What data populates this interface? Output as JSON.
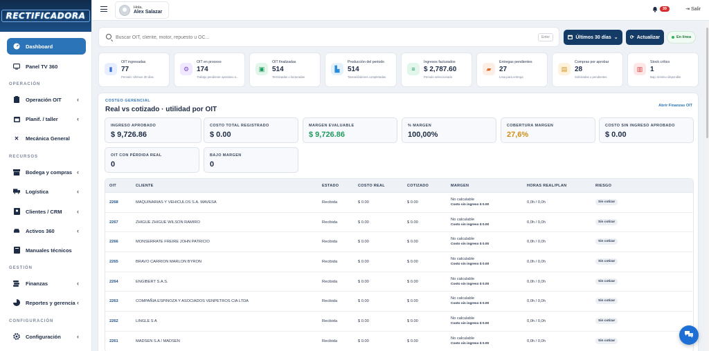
{
  "brand": {
    "logo_text": "RECTIFICADORA"
  },
  "sidebar": {
    "items": [
      {
        "label": "Dashboard",
        "icon": "dashboard-gauge-icon",
        "active": true
      },
      {
        "label": "Panel TV 360",
        "icon": "tv-icon"
      },
      {
        "label": "Operación OIT",
        "icon": "clipboard-icon",
        "chevron": true
      },
      {
        "label": "Planif. / taller",
        "icon": "calendar-icon",
        "chevron": true
      },
      {
        "label": "Mecánica General",
        "icon": "wrench-icon"
      },
      {
        "label": "Bodega y compras",
        "icon": "box-icon",
        "chevron": true
      },
      {
        "label": "Logística",
        "icon": "truck-icon",
        "chevron": true
      },
      {
        "label": "Clientes / CRM",
        "icon": "address-book-icon",
        "chevron": true
      },
      {
        "label": "Activos 360",
        "icon": "car-icon",
        "chevron": true
      },
      {
        "label": "Manuales técnicos",
        "icon": "book-icon"
      },
      {
        "label": "Finanzas",
        "icon": "coins-icon",
        "chevron": true
      },
      {
        "label": "Reportes y gerencia",
        "icon": "pie-chart-icon",
        "chevron": true
      },
      {
        "label": "Configuración",
        "icon": "gear-icon",
        "chevron": true
      }
    ],
    "sections": [
      "OPERACIÓN",
      "RECURSOS",
      "GESTIÓN",
      "CONFIGURACIÓN"
    ]
  },
  "topbar": {
    "greeting": "Hola,",
    "user_name": "Alex Salazar",
    "notif_count": "39",
    "logout_label": "Salir"
  },
  "search": {
    "placeholder": "Buscar OIT, cliente, motor, repuesto u OC...",
    "enter_hint": "Enter",
    "range_label": "Últimos 30 días",
    "refresh_label": "Actualizar",
    "status_label": "En línea"
  },
  "kpis": [
    {
      "label": "OIT ingresadas",
      "value": "77",
      "sub": "Periodo: Últimos 30 días",
      "icon": "clipboard-icon",
      "color": "#3a6fd8",
      "bg": "#e6eeff"
    },
    {
      "label": "OIT en proceso",
      "value": "174",
      "sub": "Trabajo pendiente operativo a...",
      "icon": "gears-icon",
      "color": "#7a4fd0",
      "bg": "#efe8ff"
    },
    {
      "label": "OIT finalizadas",
      "value": "514",
      "sub": "Terminadas o facturadas",
      "icon": "check-box-icon",
      "color": "#1d9a5c",
      "bg": "#e3f6ec"
    },
    {
      "label": "Producción del periodo",
      "value": "514",
      "sub": "Tareas/órdenes completadas",
      "icon": "industry-icon",
      "color": "#2a8bd6",
      "bg": "#e3f1fc"
    },
    {
      "label": "Ingresos facturados",
      "value": "$ 2,787.60",
      "sub": "Periodo seleccionado",
      "icon": "money-icon",
      "color": "#1d9a5c",
      "bg": "#e3f6ec"
    },
    {
      "label": "Entregas pendientes",
      "value": "27",
      "sub": "Lista para entrega",
      "icon": "truck-icon",
      "color": "#e0662b",
      "bg": "#fdeee5"
    },
    {
      "label": "Compras por aprobar",
      "value": "28",
      "sub": "Solicitadas o pendientes",
      "icon": "cart-icon",
      "color": "#d18d12",
      "bg": "#fdf3dd"
    },
    {
      "label": "Stock crítico",
      "value": "1",
      "sub": "Bajo mínimo disponible",
      "icon": "box-alert-icon",
      "color": "#d23a3a",
      "bg": "#fde6e6"
    }
  ],
  "panel": {
    "eyebrow": "COSTEO GERENCIAL",
    "title": "Real vs cotizado · utilidad por OIT",
    "link": "Abrir Finanzas OIT",
    "metrics": [
      {
        "label": "INGRESO APROBADO",
        "value": "$ 9,726.86",
        "color": "#1d2b45"
      },
      {
        "label": "COSTO TOTAL REGISTRADO",
        "value": "$ 0.00",
        "color": "#1d2b45"
      },
      {
        "label": "MARGEN EVALUABLE",
        "value": "$ 9,726.86",
        "color": "#1d9a5c"
      },
      {
        "label": "% MARGEN",
        "value": "100,00%",
        "color": "#1d2b45"
      },
      {
        "label": "COBERTURA MARGEN",
        "value": "27,6%",
        "color": "#d18d12"
      },
      {
        "label": "COSTO SIN INGRESO APROBADO",
        "value": "$ 0.00",
        "color": "#1d2b45"
      },
      {
        "label": "OIT CON PÉRDIDA REAL",
        "value": "0",
        "color": "#1d2b45"
      },
      {
        "label": "BAJO MARGEN",
        "value": "0",
        "color": "#1d2b45"
      }
    ]
  },
  "table": {
    "headers": [
      "OIT",
      "CLIENTE",
      "ESTADO",
      "COSTO REAL",
      "COTIZADO",
      "MARGEN",
      "HORAS REAL/PLAN",
      "RIESGO"
    ],
    "rows": [
      {
        "oit": "2268",
        "cliente": "MAQUINARIAS Y VEHICULOS S.A. MAVESA",
        "estado": "Recibida",
        "costo": "$ 0.00",
        "cotizado": "$ 0.00",
        "margen": "No calculable",
        "margen_sub": "Costo sin ingreso $ 0.00",
        "horas": "0,0h / 0,0h",
        "riesgo": "Sin cotizar"
      },
      {
        "oit": "2267",
        "cliente": "ZHIGUE ZHIGUE WILSON RAMIRO",
        "estado": "Recibida",
        "costo": "$ 0.00",
        "cotizado": "$ 0.00",
        "margen": "No calculable",
        "margen_sub": "Costo sin ingreso $ 0.00",
        "horas": "0,0h / 0,0h",
        "riesgo": "Sin cotizar"
      },
      {
        "oit": "2266",
        "cliente": "MONSERRATE FREIRE JOHN PATRICIO",
        "estado": "Recibida",
        "costo": "$ 0.00",
        "cotizado": "$ 0.00",
        "margen": "No calculable",
        "margen_sub": "Costo sin ingreso $ 0.00",
        "horas": "0,0h / 0,0h",
        "riesgo": "Sin cotizar"
      },
      {
        "oit": "2265",
        "cliente": "BRAVO CARRION MARLON BYRON",
        "estado": "Recibida",
        "costo": "$ 0.00",
        "cotizado": "$ 0.00",
        "margen": "No calculable",
        "margen_sub": "Costo sin ingreso $ 0.00",
        "horas": "0,0h / 0,0h",
        "riesgo": "Sin cotizar"
      },
      {
        "oit": "2264",
        "cliente": "ENGIBERT S.A.S.",
        "estado": "Recibida",
        "costo": "$ 0.00",
        "cotizado": "$ 0.00",
        "margen": "No calculable",
        "margen_sub": "Costo sin ingreso $ 0.00",
        "horas": "0,0h / 0,0h",
        "riesgo": "Sin cotizar"
      },
      {
        "oit": "2263",
        "cliente": "COMPAÑIA ESPINOZA Y ASOCIADOS VENPETROS CIA LTDA",
        "estado": "Recibida",
        "costo": "$ 0.00",
        "cotizado": "$ 0.00",
        "margen": "No calculable",
        "margen_sub": "Costo sin ingreso $ 0.00",
        "horas": "0,0h / 0,0h",
        "riesgo": "Sin cotizar"
      },
      {
        "oit": "2262",
        "cliente": "LINGLE S A",
        "estado": "Recibida",
        "costo": "$ 0.00",
        "cotizado": "$ 0.00",
        "margen": "No calculable",
        "margen_sub": "Costo sin ingreso $ 0.00",
        "horas": "0,0h / 0,0h",
        "riesgo": "Sin cotizar"
      },
      {
        "oit": "2261",
        "cliente": "MADSEN S.A / MADSEN",
        "estado": "Recibida",
        "costo": "$ 0.00",
        "cotizado": "$ 0.00",
        "margen": "No calculable",
        "margen_sub": "Costo sin ingreso $ 0.00",
        "horas": "0,0h / 0,0h",
        "riesgo": "Sin cotizar"
      }
    ]
  }
}
